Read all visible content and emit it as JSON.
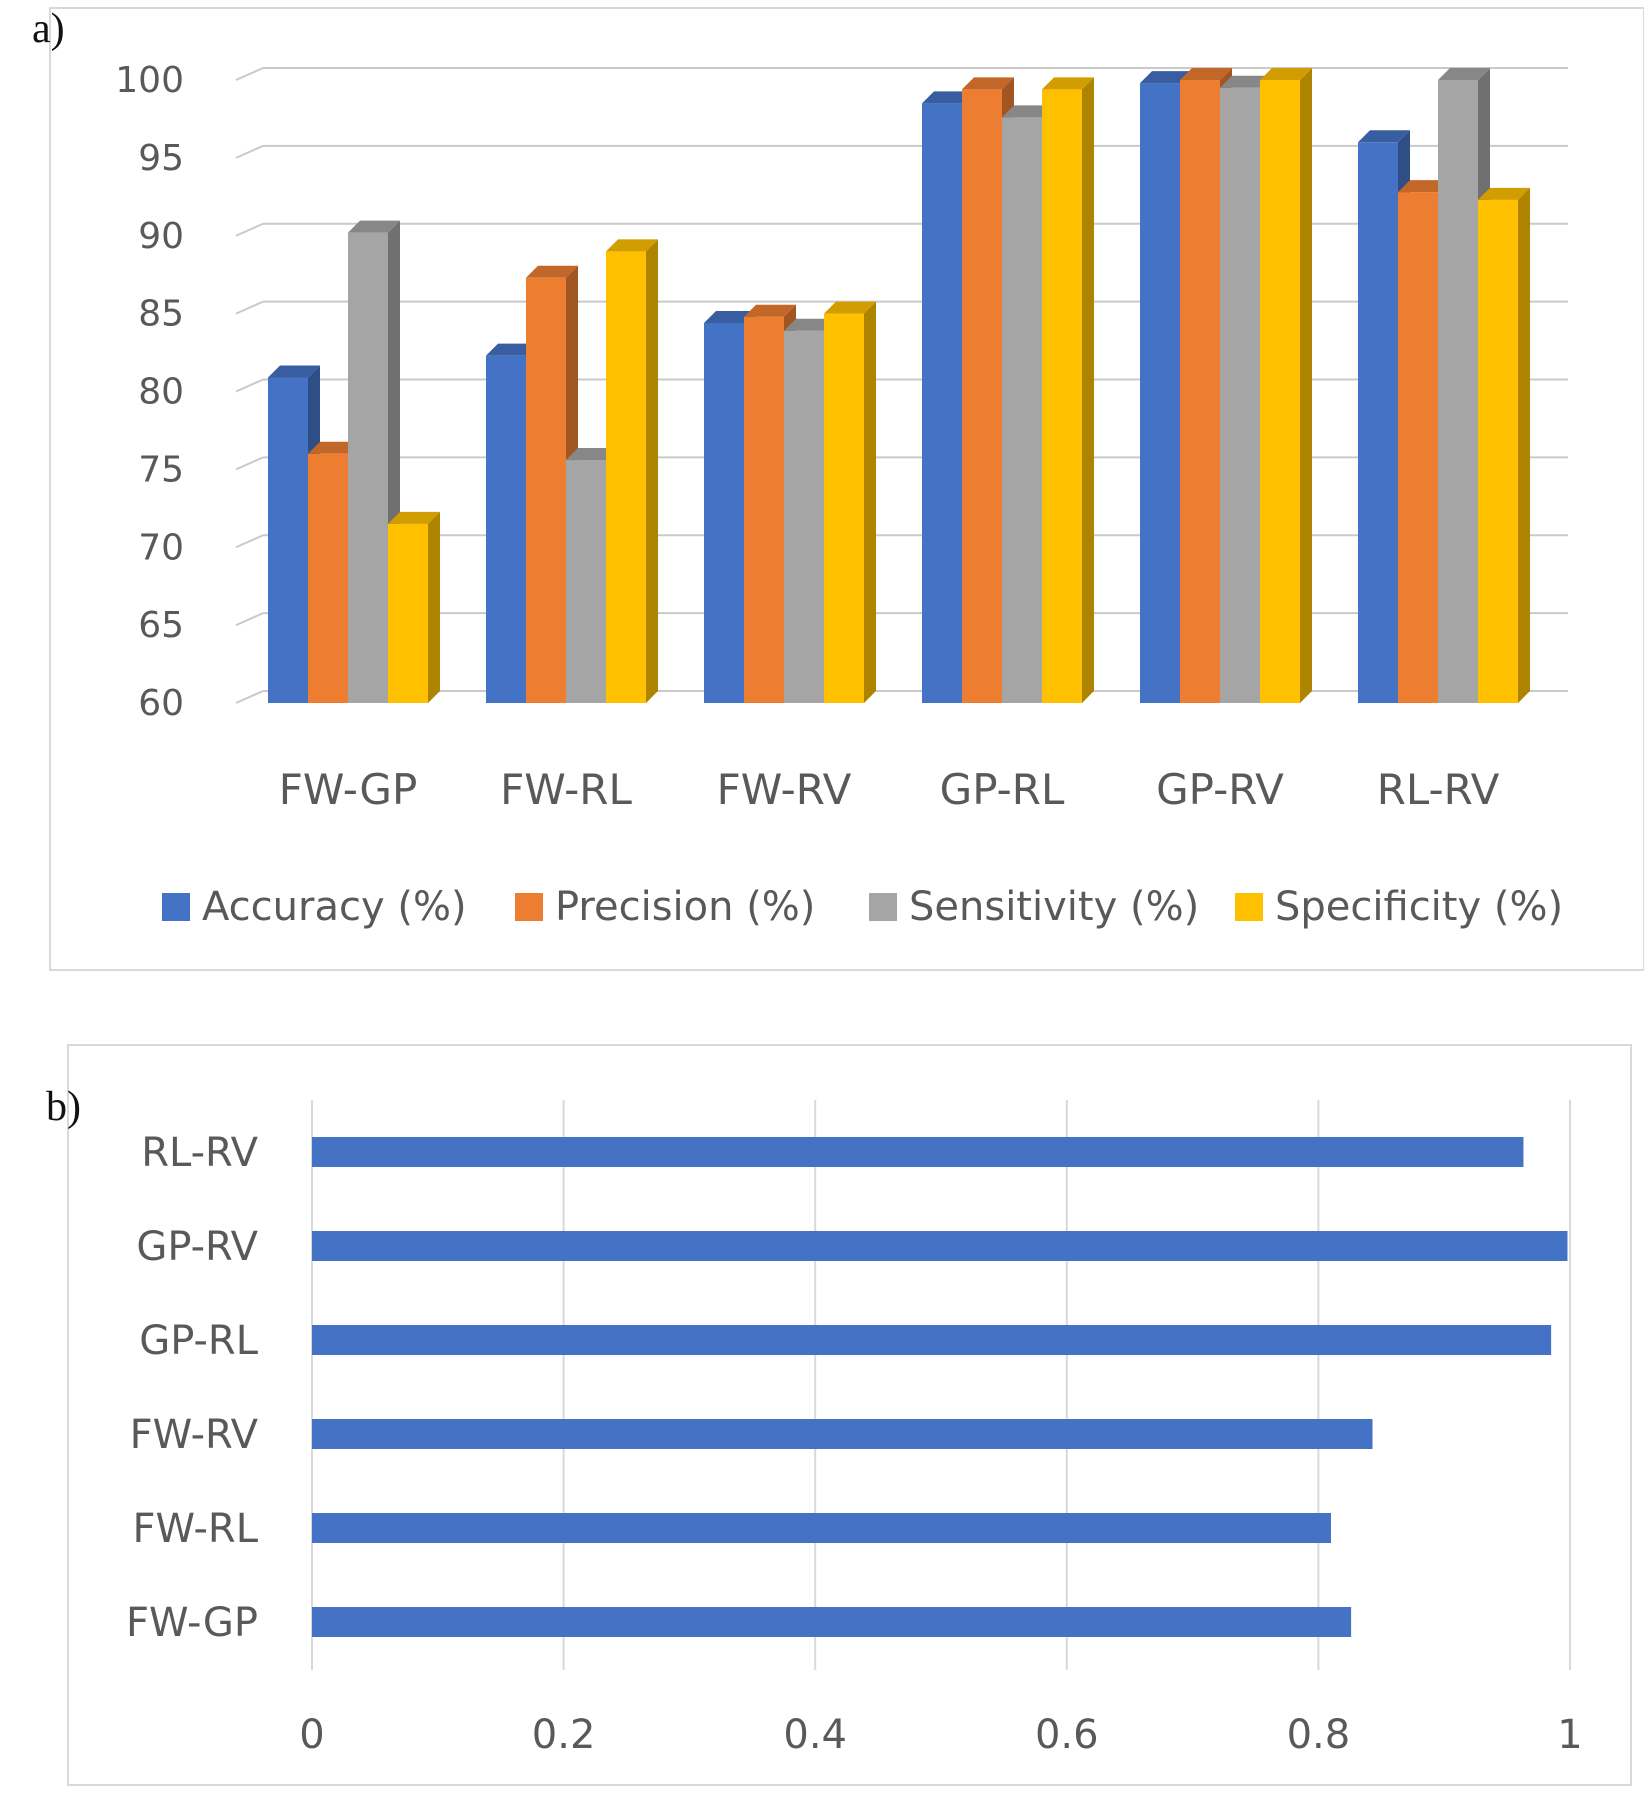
{
  "chart_data": [
    {
      "type": "bar",
      "panel_label": "a)",
      "categories": [
        "FW-GP",
        "FW-RL",
        "FW-RV",
        "GP-RL",
        "GP-RV",
        "RL-RV"
      ],
      "series": [
        {
          "name": "Accuracy  (%)",
          "values": [
            80.9,
            82.3,
            84.4,
            98.5,
            99.8,
            96.0
          ]
        },
        {
          "name": "Precision  (%)",
          "values": [
            76.0,
            87.3,
            84.8,
            99.4,
            100.0,
            92.8
          ]
        },
        {
          "name": "Sensitivity (%)",
          "values": [
            90.2,
            75.6,
            83.9,
            97.6,
            99.5,
            100.0
          ]
        },
        {
          "name": "Specificity (%)",
          "values": [
            71.5,
            89.0,
            85.0,
            99.4,
            100.0,
            92.3
          ]
        }
      ],
      "colors": [
        "#4472C4",
        "#ED7D31",
        "#A5A5A5",
        "#FFC000"
      ],
      "ylim": [
        60,
        100
      ],
      "yticks": [
        "60",
        "65",
        "70",
        "75",
        "80",
        "85",
        "90",
        "95",
        "100"
      ],
      "legend_position": "bottom",
      "grid": true
    },
    {
      "type": "bar",
      "orientation": "horizontal",
      "panel_label": "b)",
      "categories": [
        "RL-RV",
        "GP-RV",
        "GP-RL",
        "FW-RV",
        "FW-RL",
        "FW-GP"
      ],
      "values": [
        0.963,
        0.998,
        0.985,
        0.843,
        0.81,
        0.826
      ],
      "color": "#4472C4",
      "xlim": [
        0,
        1
      ],
      "xticks": [
        "0",
        "0.2",
        "0.4",
        "0.6",
        "0.8",
        "1"
      ],
      "grid": true
    }
  ]
}
